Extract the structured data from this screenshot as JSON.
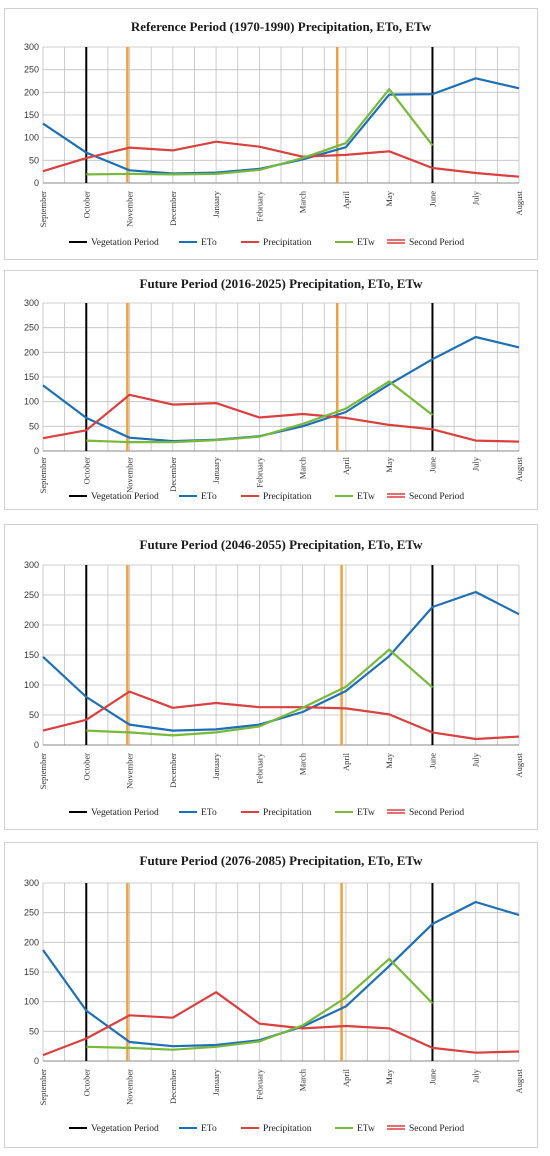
{
  "colors": {
    "eto": "#1f6fb4",
    "precipitation": "#d94040",
    "etw": "#78b83a",
    "vegetation": "#000000",
    "second": "#f0a040",
    "grid": "#bfbfbf"
  },
  "legend_labels": {
    "vegetation": "Vegetation Period",
    "eto": "ETo",
    "precipitation": "Precipitation",
    "etw": "ETw",
    "second": "Second Period"
  },
  "chart_data": [
    {
      "type": "line",
      "title": "Reference Period (1970-1990) Precipitation, ETo, ETw",
      "categories": [
        "September",
        "October",
        "November",
        "December",
        "January",
        "February",
        "March",
        "April",
        "May",
        "June",
        "July",
        "August"
      ],
      "ylim": [
        0,
        300
      ],
      "yticks": [
        "0",
        "50",
        "100",
        "150",
        "200",
        "250",
        "300"
      ],
      "series": [
        {
          "name": "ETo",
          "values": [
            131,
            67,
            28,
            21,
            23,
            31,
            52,
            79,
            195,
            196,
            231,
            209
          ]
        },
        {
          "name": "Precipitation",
          "values": [
            26,
            55,
            78,
            72,
            91,
            80,
            58,
            62,
            70,
            33,
            22,
            14
          ]
        },
        {
          "name": "ETw",
          "values": [
            null,
            19,
            20,
            19,
            20,
            29,
            55,
            88,
            207,
            83,
            null,
            null
          ]
        }
      ],
      "vegetation_period_x": [
        1,
        9
      ],
      "second_period_x": [
        1.95,
        6.8
      ],
      "legend": "bottom"
    },
    {
      "type": "line",
      "title": "Future Period (2016-2025) Precipitation, ETo, ETw",
      "categories": [
        "September",
        "October",
        "November",
        "December",
        "January",
        "February",
        "March",
        "April",
        "May",
        "June",
        "July",
        "August"
      ],
      "ylim": [
        0,
        300
      ],
      "yticks": [
        "0",
        "50",
        "100",
        "150",
        "200",
        "250",
        "300"
      ],
      "series": [
        {
          "name": "ETo",
          "values": [
            133,
            67,
            27,
            20,
            23,
            30,
            50,
            79,
            135,
            186,
            231,
            210
          ]
        },
        {
          "name": "Precipitation",
          "values": [
            26,
            42,
            114,
            94,
            97,
            68,
            75,
            67,
            53,
            44,
            21,
            19
          ]
        },
        {
          "name": "ETw",
          "values": [
            null,
            21,
            18,
            18,
            22,
            29,
            55,
            86,
            141,
            73,
            null,
            null
          ]
        }
      ],
      "vegetation_period_x": [
        1,
        9
      ],
      "second_period_x": [
        1.95,
        6.8
      ],
      "legend": "bottom"
    },
    {
      "type": "line",
      "title": "Future Period (2046-2055) Precipitation, ETo, ETw",
      "categories": [
        "September",
        "October",
        "November",
        "December",
        "January",
        "February",
        "March",
        "April",
        "May",
        "June",
        "July",
        "August"
      ],
      "ylim": [
        0,
        300
      ],
      "yticks": [
        "0",
        "50",
        "100",
        "150",
        "200",
        "250",
        "300"
      ],
      "series": [
        {
          "name": "ETo",
          "values": [
            147,
            80,
            34,
            24,
            26,
            34,
            55,
            90,
            148,
            230,
            255,
            218
          ]
        },
        {
          "name": "Precipitation",
          "values": [
            24,
            42,
            89,
            62,
            70,
            63,
            63,
            61,
            51,
            21,
            10,
            14
          ]
        },
        {
          "name": "ETw",
          "values": [
            null,
            24,
            21,
            16,
            21,
            31,
            62,
            97,
            159,
            96,
            null,
            null
          ]
        }
      ],
      "vegetation_period_x": [
        1,
        9
      ],
      "second_period_x": [
        1.95,
        6.9
      ],
      "legend": "bottom"
    },
    {
      "type": "line",
      "title": "Future Period (2076-2085) Precipitation, ETo, ETw",
      "categories": [
        "September",
        "October",
        "November",
        "December",
        "January",
        "February",
        "March",
        "April",
        "May",
        "June",
        "July",
        "August"
      ],
      "ylim": [
        0,
        300
      ],
      "yticks": [
        "0",
        "50",
        "100",
        "150",
        "200",
        "250",
        "300"
      ],
      "series": [
        {
          "name": "ETo",
          "values": [
            187,
            85,
            32,
            25,
            27,
            35,
            58,
            92,
            160,
            231,
            268,
            246
          ]
        },
        {
          "name": "Precipitation",
          "values": [
            10,
            38,
            77,
            73,
            116,
            63,
            55,
            59,
            55,
            22,
            14,
            16
          ]
        },
        {
          "name": "ETw",
          "values": [
            null,
            24,
            22,
            19,
            24,
            33,
            60,
            107,
            172,
            97,
            null,
            null
          ]
        }
      ],
      "vegetation_period_x": [
        1,
        9
      ],
      "second_period_x": [
        1.95,
        6.9
      ],
      "legend": "bottom"
    }
  ]
}
